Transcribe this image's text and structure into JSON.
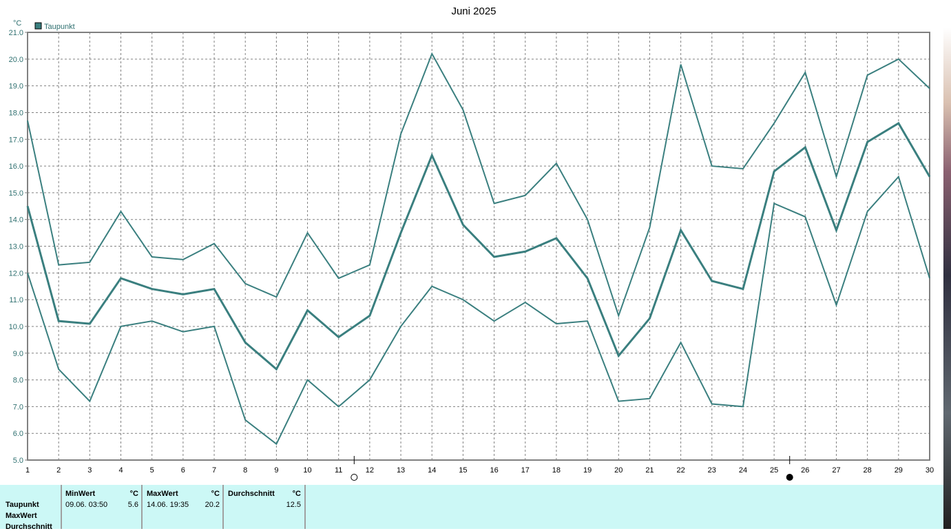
{
  "chart_data": {
    "type": "line",
    "title": "Juni 2025",
    "ylabel": "°C",
    "ylim": [
      5,
      21
    ],
    "yticks": [
      "5.0",
      "6.0",
      "7.0",
      "8.0",
      "9.0",
      "10.0",
      "11.0",
      "12.0",
      "13.0",
      "14.0",
      "15.0",
      "16.0",
      "17.0",
      "18.0",
      "19.0",
      "20.0",
      "21.0"
    ],
    "x": [
      1,
      2,
      3,
      4,
      5,
      6,
      7,
      8,
      9,
      10,
      11,
      12,
      13,
      14,
      15,
      16,
      17,
      18,
      19,
      20,
      21,
      22,
      23,
      24,
      25,
      26,
      27,
      28,
      29,
      30
    ],
    "grid": true,
    "legend": {
      "label": "Taupunkt",
      "placement": "top-left"
    },
    "color": "#3a7f7f",
    "series": [
      {
        "values": [
          17.7,
          12.3,
          12.4,
          14.3,
          12.6,
          12.5,
          13.1,
          11.6,
          11.1,
          13.5,
          11.8,
          12.3,
          17.2,
          20.2,
          18.1,
          14.6,
          14.9,
          16.1,
          14.0,
          10.4,
          13.7,
          19.8,
          16.0,
          15.9,
          17.6,
          19.5,
          15.6,
          19.4,
          20.0,
          18.9
        ]
      },
      {
        "values": [
          14.5,
          10.2,
          10.1,
          11.8,
          11.4,
          11.2,
          11.4,
          9.4,
          8.4,
          10.6,
          9.6,
          10.4,
          13.5,
          16.4,
          13.8,
          12.6,
          12.8,
          13.3,
          11.8,
          8.9,
          10.3,
          13.6,
          11.7,
          11.4,
          15.8,
          16.7,
          13.6,
          16.9,
          17.6,
          15.6
        ]
      },
      {
        "values": [
          12.0,
          8.4,
          7.2,
          10.0,
          10.2,
          9.8,
          10.0,
          6.5,
          5.6,
          8.0,
          7.0,
          8.0,
          10.0,
          11.5,
          11.0,
          10.2,
          10.9,
          10.1,
          10.2,
          7.2,
          7.3,
          9.4,
          7.1,
          7.0,
          14.6,
          14.1,
          10.8,
          14.3,
          15.6,
          11.8
        ]
      }
    ],
    "moon_phases": [
      {
        "day": 11.5,
        "phase": "full-moon"
      },
      {
        "day": 25.5,
        "phase": "new-moon"
      }
    ]
  },
  "table": {
    "rows": [
      "Taupunkt",
      "MaxWert",
      "Durchschnitt"
    ],
    "min": {
      "header": "MinWert",
      "unit": "°C",
      "date": "09.06.  03:50",
      "value": "5.6"
    },
    "max": {
      "header": "MaxWert",
      "unit": "°C",
      "date": "14.06.  19:35",
      "value": "20.2"
    },
    "avg": {
      "header": "Durchschnitt",
      "unit": "°C",
      "value": "12.5"
    }
  }
}
